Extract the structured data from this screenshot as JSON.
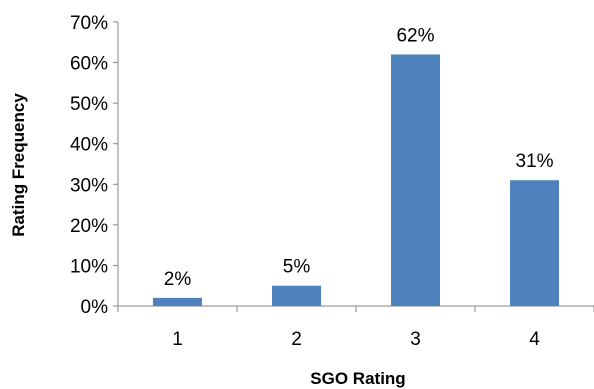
{
  "chart_data": {
    "type": "bar",
    "categories": [
      "1",
      "2",
      "3",
      "4"
    ],
    "values": [
      2,
      5,
      62,
      31
    ],
    "data_labels": [
      "2%",
      "5%",
      "62%",
      "31%"
    ],
    "y_ticks": [
      "0%",
      "10%",
      "20%",
      "30%",
      "40%",
      "50%",
      "60%",
      "70%"
    ],
    "ylim": [
      0,
      70
    ],
    "xlabel": "SGO Rating",
    "ylabel": "Rating Frequency",
    "title": "",
    "grid": false,
    "legend": "none",
    "bar_color": "#4F81BD",
    "axis_color": "#868686"
  }
}
